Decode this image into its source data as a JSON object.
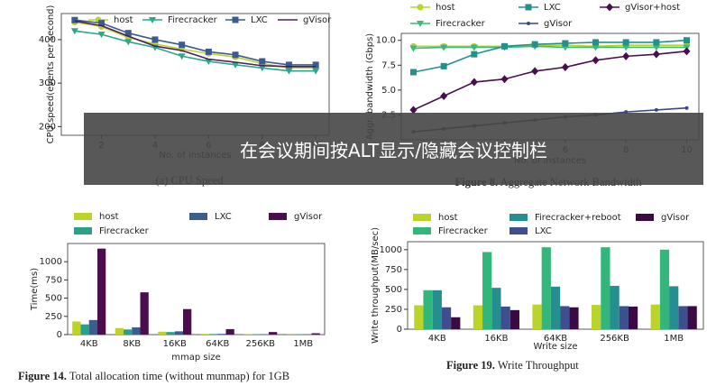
{
  "chart_data": [
    {
      "type": "line",
      "caption": "(a) CPU Speed",
      "ylabel": "CPU speed(events per second)",
      "xlabel": "No. of instances",
      "x": [
        1,
        2,
        3,
        4,
        5,
        6,
        7,
        8,
        9,
        10
      ],
      "xlim": [
        0.5,
        10.5
      ],
      "xticks": [
        2,
        4,
        6,
        8,
        10
      ],
      "ylim": [
        180,
        460
      ],
      "yticks": [
        200,
        300,
        400
      ],
      "series": [
        {
          "name": "host",
          "color": "#bcd42a",
          "marker": "circle",
          "values": [
            440,
            430,
            405,
            390,
            378,
            368,
            360,
            345,
            335,
            335
          ]
        },
        {
          "name": "Firecracker",
          "color": "#2ca58d",
          "marker": "triangle-down",
          "values": [
            420,
            412,
            395,
            382,
            362,
            350,
            342,
            335,
            328,
            328
          ]
        },
        {
          "name": "LXC",
          "color": "#3b5b92",
          "marker": "square",
          "values": [
            445,
            438,
            415,
            400,
            388,
            372,
            365,
            350,
            342,
            342
          ]
        },
        {
          "name": "gVisor",
          "color": "#4b1f5e",
          "marker": "none",
          "values": [
            443,
            432,
            408,
            385,
            375,
            355,
            348,
            340,
            338,
            338
          ]
        }
      ]
    },
    {
      "type": "line",
      "caption_label": "Figure 8.",
      "caption": "Aggregate Network Bandwidth",
      "ylabel": "Aggr. bandwidth (Gbps)",
      "xlabel": "No. of instances",
      "x": [
        1,
        2,
        3,
        4,
        5,
        6,
        7,
        8,
        9,
        10
      ],
      "xlim": [
        0.6,
        10.4
      ],
      "xticks": [
        2,
        4,
        6,
        8,
        10
      ],
      "ylim": [
        0,
        10.7
      ],
      "yticks": [
        {
          "value": 2.5,
          "label": "2.5"
        },
        {
          "value": 5,
          "label": "5.0"
        },
        {
          "value": 7.5,
          "label": "7.5"
        },
        {
          "value": 10,
          "label": "10.0"
        }
      ],
      "series": [
        {
          "name": "host",
          "color": "#bcd42a",
          "marker": "circle",
          "values": [
            9.4,
            9.4,
            9.4,
            9.4,
            9.5,
            9.5,
            9.4,
            9.5,
            9.5,
            9.5
          ]
        },
        {
          "name": "Firecracker",
          "color": "#3cb878",
          "marker": "triangle-down",
          "values": [
            9.2,
            9.3,
            9.3,
            9.3,
            9.4,
            9.3,
            9.3,
            9.3,
            9.3,
            9.3
          ]
        },
        {
          "name": "LXC",
          "color": "#24908c",
          "marker": "square",
          "values": [
            6.8,
            7.4,
            8.6,
            9.4,
            9.6,
            9.7,
            9.8,
            9.8,
            9.8,
            10.0
          ]
        },
        {
          "name": "gVisor",
          "color": "#3a4a7c",
          "marker": "small-circle",
          "values": [
            0.8,
            1.1,
            1.4,
            1.7,
            2.0,
            2.3,
            2.5,
            2.8,
            3.0,
            3.2
          ]
        },
        {
          "name": "gVisor+host",
          "color": "#4a0e4e",
          "marker": "diamond",
          "values": [
            3.0,
            4.4,
            5.8,
            6.1,
            6.9,
            7.3,
            8.0,
            8.4,
            8.6,
            8.9
          ]
        }
      ]
    },
    {
      "type": "bar",
      "caption_label": "Figure 14.",
      "caption": "Total allocation time (without munmap) for 1GB",
      "ylabel": "Time(ms)",
      "xlabel": "mmap size",
      "categories": [
        "4KB",
        "8KB",
        "16KB",
        "64KB",
        "256KB",
        "1MB"
      ],
      "ylim": [
        0,
        1250
      ],
      "yticks": [
        0,
        250,
        500,
        750,
        1000
      ],
      "series": [
        {
          "name": "host",
          "color": "#bcd42a",
          "values": [
            180,
            90,
            40,
            10,
            5,
            3
          ]
        },
        {
          "name": "Firecracker",
          "color": "#2aa08a",
          "values": [
            140,
            70,
            35,
            8,
            4,
            3
          ]
        },
        {
          "name": "LXC",
          "color": "#3c5d8f",
          "values": [
            200,
            100,
            45,
            10,
            5,
            3
          ]
        },
        {
          "name": "gVisor",
          "color": "#4a0e4e",
          "values": [
            1180,
            580,
            350,
            75,
            35,
            18
          ]
        }
      ]
    },
    {
      "type": "bar",
      "caption_label": "Figure 19.",
      "caption": "Write Throughput",
      "ylabel": "Write throughput(MB/sec)",
      "xlabel": "Write size",
      "categories": [
        "4KB",
        "16KB",
        "64KB",
        "256KB",
        "1MB"
      ],
      "ylim": [
        0,
        1100
      ],
      "yticks": [
        0,
        250,
        500,
        750,
        1000
      ],
      "series": [
        {
          "name": "host",
          "color": "#bcd42a",
          "values": [
            300,
            300,
            310,
            305,
            310
          ]
        },
        {
          "name": "Firecracker",
          "color": "#33b679",
          "values": [
            490,
            970,
            1030,
            1030,
            1000
          ]
        },
        {
          "name": "Firecracker+reboot",
          "color": "#258f8f",
          "values": [
            490,
            520,
            535,
            545,
            540
          ]
        },
        {
          "name": "LXC",
          "color": "#3d4f8f",
          "values": [
            275,
            285,
            290,
            290,
            290
          ]
        },
        {
          "name": "gVisor",
          "color": "#3b0a45",
          "values": [
            150,
            240,
            275,
            285,
            290
          ]
        }
      ]
    }
  ],
  "overlay": {
    "text": "在会议期间按ALT显示/隐藏会议控制栏"
  }
}
